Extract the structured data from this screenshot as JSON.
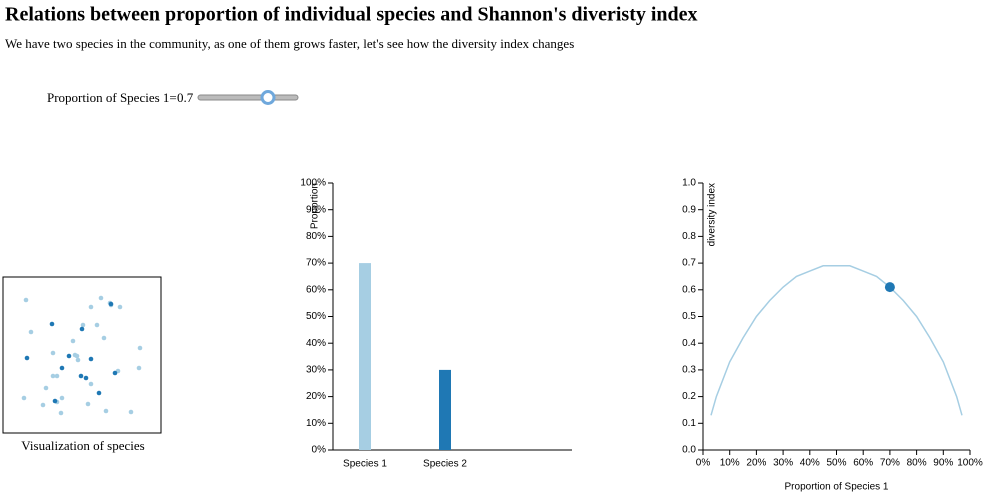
{
  "header": {
    "title": "Relations between proportion of individual species and Shannon's diveristy index",
    "subtitle": "We have two species in the community, as one of them grows faster, let's see how the diversity index changes"
  },
  "slider": {
    "label": "Proportion of Species 1=",
    "value": 0.7
  },
  "species_caption": "Visualization of species",
  "chart_data": [
    {
      "type": "bar",
      "y_label": "Proportion",
      "categories": [
        "Species 1",
        "Species 2"
      ],
      "values": [
        70,
        30
      ],
      "colors": [
        "#a6cee3",
        "#1f78b4"
      ],
      "ylim": [
        0,
        100
      ],
      "yticks": [
        {
          "value": 0,
          "label": "0%"
        },
        {
          "value": 10,
          "label": "10%"
        },
        {
          "value": 20,
          "label": "20%"
        },
        {
          "value": 30,
          "label": "30%"
        },
        {
          "value": 40,
          "label": "40%"
        },
        {
          "value": 50,
          "label": "50%"
        },
        {
          "value": 60,
          "label": "60%"
        },
        {
          "value": 70,
          "label": "70%"
        },
        {
          "value": 80,
          "label": "80%"
        },
        {
          "value": 90,
          "label": "90%"
        },
        {
          "value": 100,
          "label": "100%"
        }
      ]
    },
    {
      "type": "line",
      "x_label": "Proportion of Species 1",
      "y_label": "diversity index",
      "x": [
        3,
        5,
        10,
        15,
        20,
        25,
        30,
        35,
        40,
        45,
        50,
        55,
        60,
        65,
        70,
        75,
        80,
        85,
        90,
        95,
        97
      ],
      "values": [
        0.13,
        0.2,
        0.33,
        0.42,
        0.5,
        0.56,
        0.61,
        0.65,
        0.67,
        0.69,
        0.69,
        0.69,
        0.67,
        0.65,
        0.61,
        0.56,
        0.5,
        0.42,
        0.33,
        0.2,
        0.13
      ],
      "color": "#a6cee3",
      "highlight": {
        "x": 70,
        "value": 0.61,
        "color": "#1f78b4"
      },
      "xlim": [
        0,
        100
      ],
      "ylim": [
        0,
        1
      ],
      "xticks": [
        {
          "value": 0,
          "label": "0%"
        },
        {
          "value": 10,
          "label": "10%"
        },
        {
          "value": 20,
          "label": "20%"
        },
        {
          "value": 30,
          "label": "30%"
        },
        {
          "value": 40,
          "label": "40%"
        },
        {
          "value": 50,
          "label": "50%"
        },
        {
          "value": 60,
          "label": "60%"
        },
        {
          "value": 70,
          "label": "70%"
        },
        {
          "value": 80,
          "label": "80%"
        },
        {
          "value": 90,
          "label": "90%"
        },
        {
          "value": 100,
          "label": "100%"
        }
      ],
      "yticks": [
        {
          "value": 0,
          "label": "0.0"
        },
        0.1,
        0.2,
        0.3,
        0.4,
        0.5,
        0.6,
        0.7,
        0.8,
        0.9,
        {
          "value": 1,
          "label": "1.0"
        }
      ]
    }
  ]
}
